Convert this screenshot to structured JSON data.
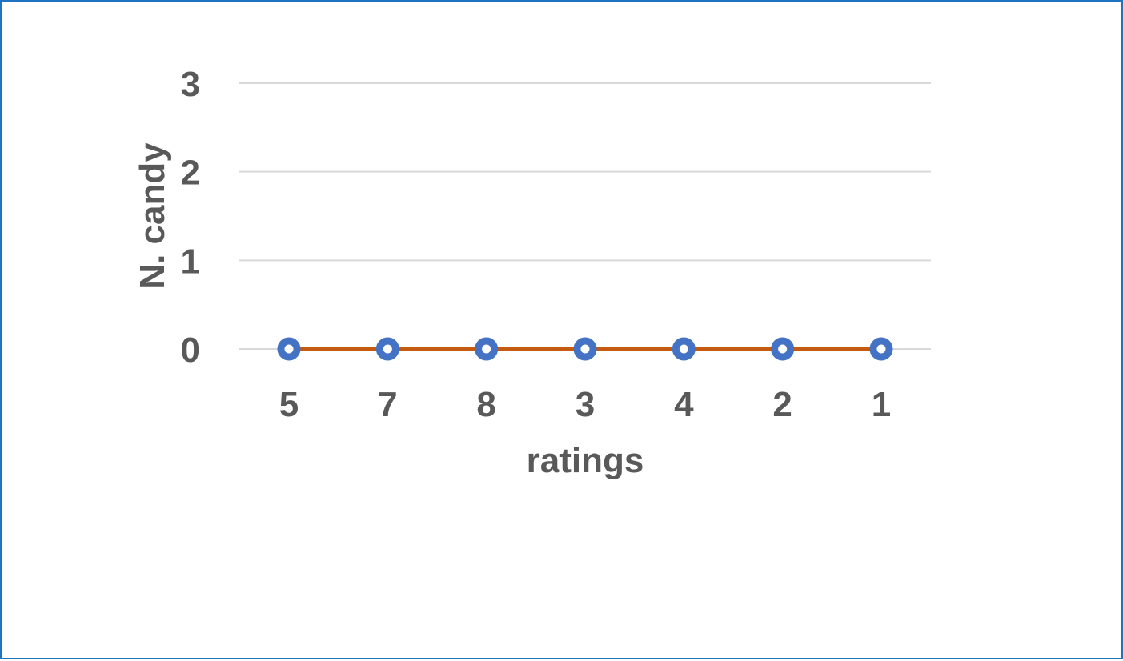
{
  "chart_data": {
    "type": "line",
    "categories": [
      "5",
      "7",
      "8",
      "3",
      "4",
      "2",
      "1"
    ],
    "series": [
      {
        "values": [
          0,
          0,
          0,
          0,
          0,
          0,
          0
        ],
        "line_color": "#c55a11",
        "marker_color": "#4472c4"
      }
    ],
    "xlabel": "ratings",
    "ylabel": "N. candy",
    "ylim": [
      0,
      3
    ],
    "yticks": [
      0,
      1,
      2,
      3
    ],
    "grid": true,
    "legend": "none"
  },
  "frame": {
    "border_color": "#1f74c1"
  }
}
